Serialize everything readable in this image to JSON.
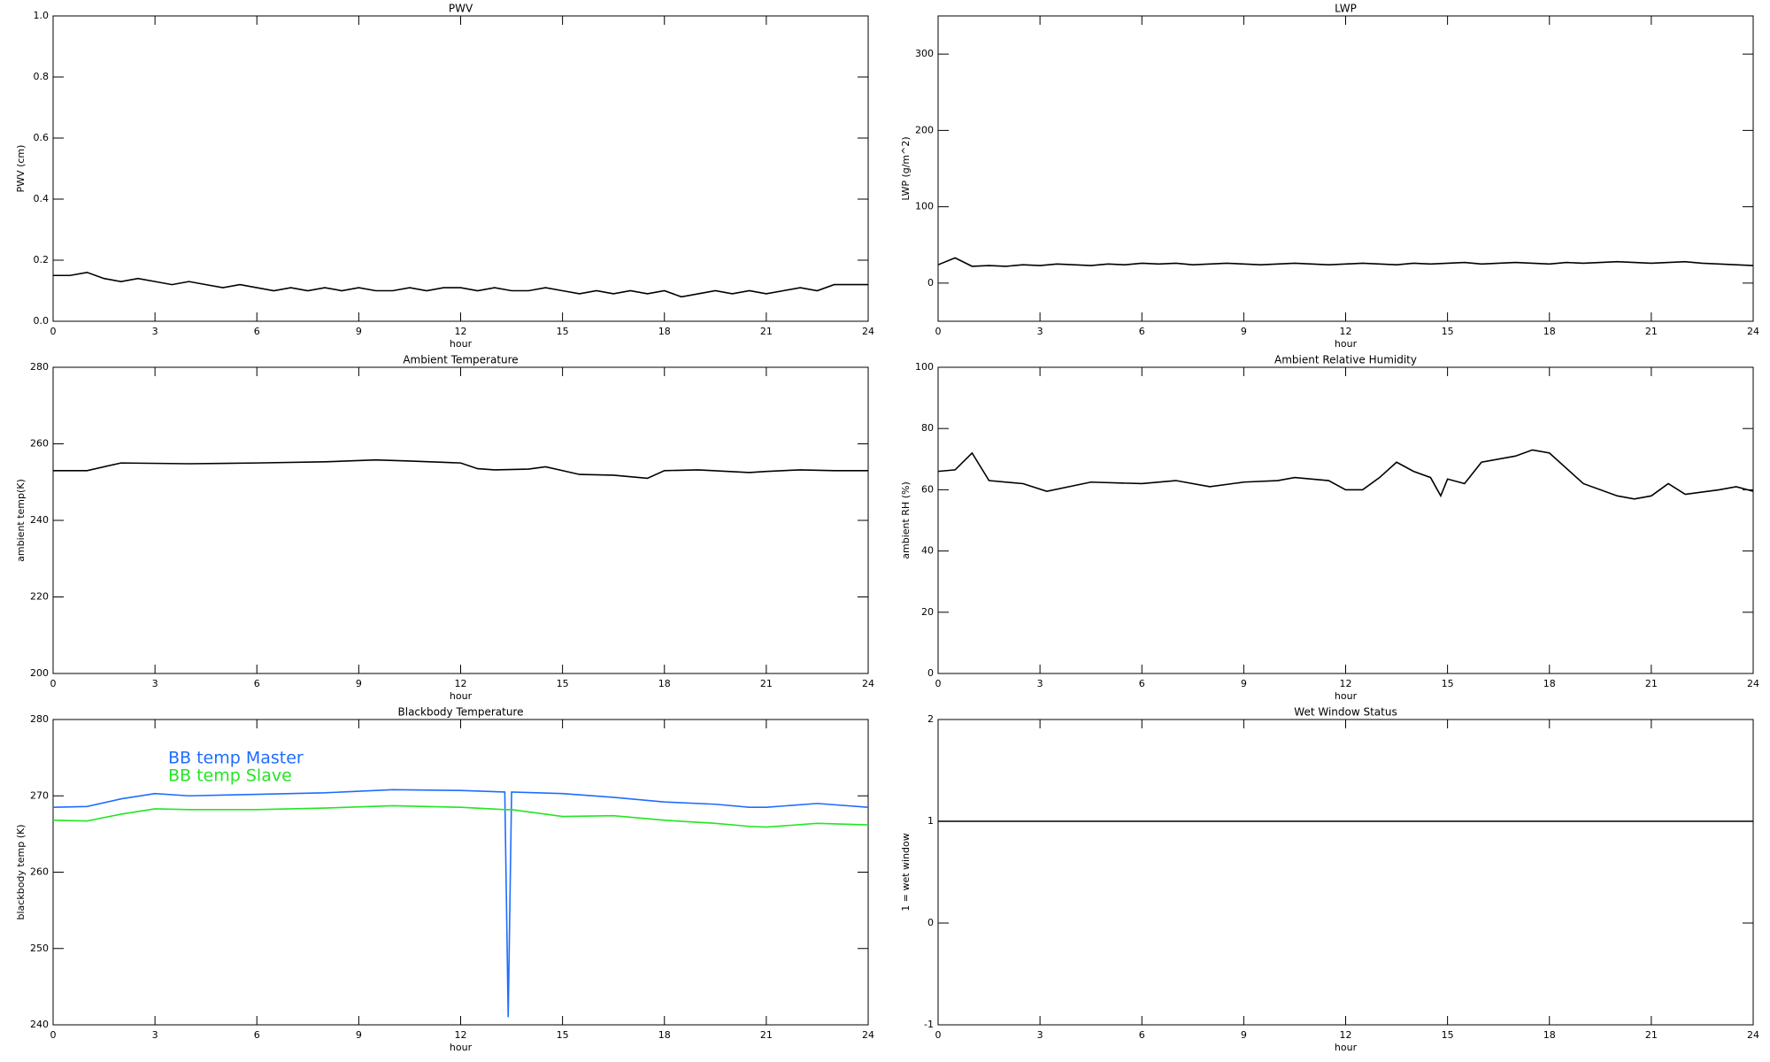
{
  "chart_data": [
    {
      "type": "line",
      "title": "PWV",
      "xlabel": "hour",
      "ylabel": "PWV (cm)",
      "xlim": [
        0,
        24
      ],
      "xticks": [
        0,
        3,
        6,
        9,
        12,
        15,
        18,
        21,
        24
      ],
      "ylim": [
        0,
        1
      ],
      "yticks": [
        {
          "value": 0,
          "label": "0.0"
        },
        0.2,
        0.4,
        0.6,
        0.8,
        {
          "value": 1,
          "label": "1.0"
        }
      ],
      "x": [
        0,
        0.5,
        1,
        1.5,
        2,
        2.5,
        3,
        3.5,
        4,
        4.5,
        5,
        5.5,
        6,
        6.5,
        7,
        7.5,
        8,
        8.5,
        9,
        9.5,
        10,
        10.5,
        11,
        11.5,
        12,
        12.5,
        13,
        13.5,
        14,
        14.5,
        15,
        15.5,
        16,
        16.5,
        17,
        17.5,
        18,
        18.5,
        19,
        19.5,
        20,
        20.5,
        21,
        21.5,
        22,
        22.5,
        23,
        23.5,
        24
      ],
      "color": "#000000",
      "values": [
        0.15,
        0.15,
        0.16,
        0.14,
        0.13,
        0.14,
        0.13,
        0.12,
        0.13,
        0.12,
        0.11,
        0.12,
        0.11,
        0.1,
        0.11,
        0.1,
        0.11,
        0.1,
        0.11,
        0.1,
        0.1,
        0.11,
        0.1,
        0.11,
        0.11,
        0.1,
        0.11,
        0.1,
        0.1,
        0.11,
        0.1,
        0.09,
        0.1,
        0.09,
        0.1,
        0.09,
        0.1,
        0.08,
        0.09,
        0.1,
        0.09,
        0.1,
        0.09,
        0.1,
        0.11,
        0.1,
        0.12,
        0.12,
        0.12
      ]
    },
    {
      "type": "line",
      "title": "LWP",
      "xlabel": "hour",
      "ylabel": "LWP (g/m^2)",
      "xlim": [
        0,
        24
      ],
      "xticks": [
        0,
        3,
        6,
        9,
        12,
        15,
        18,
        21,
        24
      ],
      "ylim": [
        -50,
        350
      ],
      "yticks": [
        0,
        100,
        200,
        300
      ],
      "x": [
        0,
        0.5,
        1,
        1.5,
        2,
        2.5,
        3,
        3.5,
        4,
        4.5,
        5,
        5.5,
        6,
        6.5,
        7,
        7.5,
        8,
        8.5,
        9,
        9.5,
        10,
        10.5,
        11,
        11.5,
        12,
        12.5,
        13,
        13.5,
        14,
        14.5,
        15,
        15.5,
        16,
        16.5,
        17,
        17.5,
        18,
        18.5,
        19,
        19.5,
        20,
        20.5,
        21,
        21.5,
        22,
        22.5,
        23,
        23.5,
        24
      ],
      "color": "#000000",
      "values": [
        24,
        33,
        22,
        23,
        22,
        24,
        23,
        25,
        24,
        23,
        25,
        24,
        26,
        25,
        26,
        24,
        25,
        26,
        25,
        24,
        25,
        26,
        25,
        24,
        25,
        26,
        25,
        24,
        26,
        25,
        26,
        27,
        25,
        26,
        27,
        26,
        25,
        27,
        26,
        27,
        28,
        27,
        26,
        27,
        28,
        26,
        25,
        24,
        23
      ]
    },
    {
      "type": "line",
      "title": "Ambient Temperature",
      "xlabel": "hour",
      "ylabel": "ambient temp(K)",
      "xlim": [
        0,
        24
      ],
      "xticks": [
        0,
        3,
        6,
        9,
        12,
        15,
        18,
        21,
        24
      ],
      "ylim": [
        200,
        280
      ],
      "yticks": [
        200,
        220,
        240,
        260,
        280
      ],
      "x": [
        0,
        1,
        2,
        4,
        6,
        8,
        9.5,
        10.5,
        12,
        12.5,
        13,
        14,
        14.5,
        15,
        15.5,
        16.5,
        17.5,
        18,
        19,
        20.5,
        21,
        22,
        23,
        24
      ],
      "color": "#000000",
      "values": [
        253,
        253,
        255,
        254.8,
        255,
        255.3,
        255.8,
        255.5,
        255,
        253.5,
        253.2,
        253.4,
        254,
        253,
        252,
        251.8,
        251,
        253,
        253.2,
        252.5,
        252.8,
        253.2,
        253,
        253
      ]
    },
    {
      "type": "line",
      "title": "Ambient Relative Humidity",
      "xlabel": "hour",
      "ylabel": "ambient RH (%)",
      "xlim": [
        0,
        24
      ],
      "xticks": [
        0,
        3,
        6,
        9,
        12,
        15,
        18,
        21,
        24
      ],
      "ylim": [
        0,
        100
      ],
      "yticks": [
        0,
        20,
        40,
        60,
        80,
        100
      ],
      "x": [
        0,
        0.5,
        1,
        1.5,
        2.5,
        3.2,
        4.5,
        6,
        7,
        8,
        9,
        10,
        10.5,
        11.5,
        12,
        12.5,
        13,
        13.5,
        14,
        14.5,
        14.8,
        15,
        15.5,
        16,
        17,
        17.5,
        18,
        19,
        20,
        20.5,
        21,
        21.5,
        22,
        23,
        23.5,
        24
      ],
      "color": "#000000",
      "values": [
        66,
        66.5,
        72,
        63,
        62,
        59.5,
        62.5,
        62,
        63,
        61,
        62.5,
        63,
        64,
        63,
        60,
        60,
        64,
        69,
        66,
        64,
        58,
        63.5,
        62,
        69,
        71,
        73,
        72,
        62,
        58,
        57,
        58,
        62,
        58.5,
        60,
        61,
        59.5
      ]
    },
    {
      "type": "line",
      "title": "Blackbody Temperature",
      "xlabel": "hour",
      "ylabel": "blackbody temp (K)",
      "xlim": [
        0,
        24
      ],
      "xticks": [
        0,
        3,
        6,
        9,
        12,
        15,
        18,
        21,
        24
      ],
      "ylim": [
        240,
        280
      ],
      "yticks": [
        240,
        250,
        260,
        270,
        280
      ],
      "x": [
        0,
        1,
        2,
        3,
        4,
        6,
        8,
        10,
        12,
        13.3,
        13.4,
        13.5,
        15,
        16.5,
        18,
        19.5,
        20.5,
        21,
        22.5,
        24
      ],
      "series": [
        {
          "name": "BB temp Master",
          "color": "#1e6cff",
          "values": [
            268.5,
            268.6,
            269.6,
            270.3,
            270,
            270.2,
            270.4,
            270.8,
            270.7,
            270.5,
            241,
            270.5,
            270.3,
            269.8,
            269.2,
            268.9,
            268.5,
            268.5,
            269,
            268.5
          ]
        },
        {
          "name": "BB temp Slave",
          "color": "#22e622",
          "values": [
            266.8,
            266.7,
            267.6,
            268.3,
            268.2,
            268.2,
            268.4,
            268.7,
            268.5,
            268.2,
            268.2,
            268.2,
            267.3,
            267.4,
            266.8,
            266.4,
            266,
            265.9,
            266.4,
            266.2
          ]
        }
      ]
    },
    {
      "type": "line",
      "title": "Wet Window Status",
      "xlabel": "hour",
      "ylabel": "1 = wet window",
      "xlim": [
        0,
        24
      ],
      "xticks": [
        0,
        3,
        6,
        9,
        12,
        15,
        18,
        21,
        24
      ],
      "ylim": [
        -1,
        2
      ],
      "yticks": [
        -1,
        0,
        1,
        2
      ],
      "x": [
        0,
        24
      ],
      "color": "#000000",
      "values": [
        1,
        1
      ]
    }
  ]
}
